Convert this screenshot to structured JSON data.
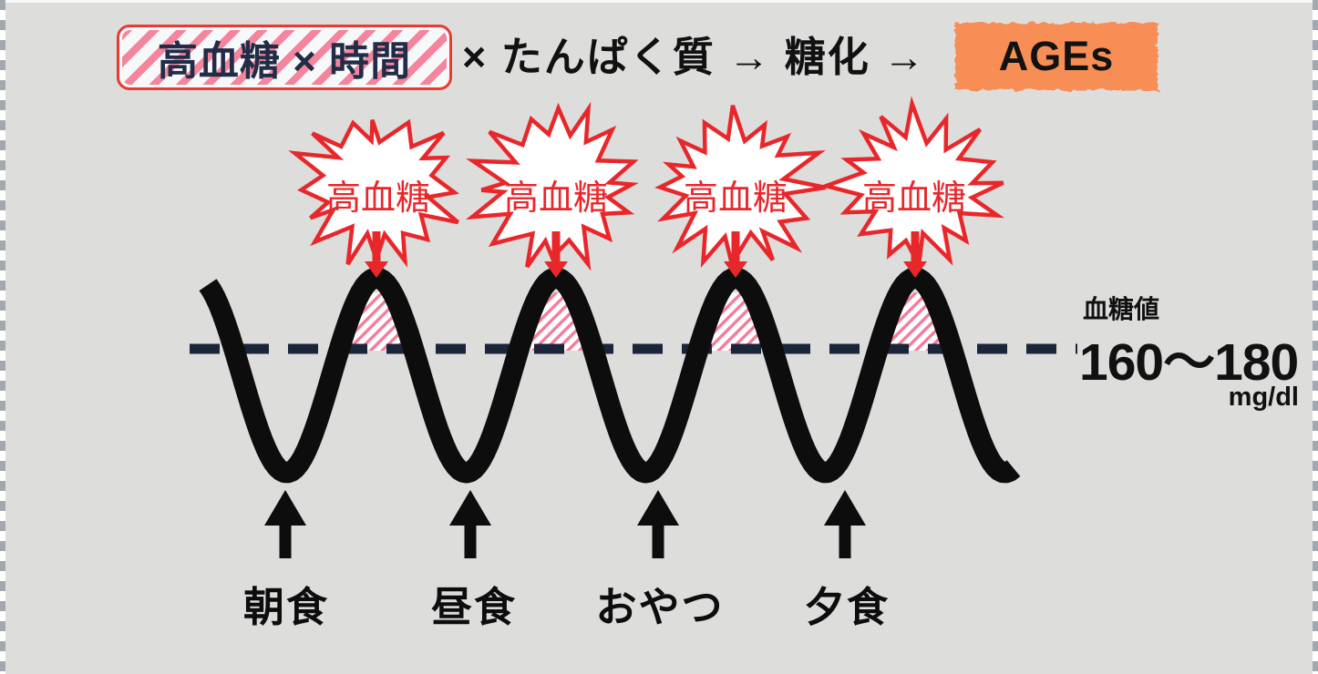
{
  "formula": {
    "box1_label": "高血糖 × 時間",
    "middle_text": "× たんぱく質 → 糖化 →",
    "ages_label": "AGEs"
  },
  "bursts": {
    "labels": [
      "高血糖",
      "高血糖",
      "高血糖",
      "高血糖"
    ]
  },
  "threshold": {
    "title": "血糖値",
    "range": "160〜180",
    "unit": "mg/dl"
  },
  "meals": {
    "labels": [
      "朝食",
      "昼食",
      "おやつ",
      "夕食"
    ]
  },
  "colors": {
    "background": "#dddddc",
    "red_accent": "#e8272b",
    "pink_hatch": "#f5849d",
    "orange_box": "#f78e55",
    "navy_text": "#232c47",
    "threshold_line": "#1b2539",
    "wave_black": "#0d0d0d"
  },
  "chart_data": {
    "type": "line",
    "events": [
      "朝食",
      "昼食",
      "おやつ",
      "夕食"
    ],
    "spike_label": "高血糖",
    "spike_count": 4,
    "threshold_label": "血糖値",
    "threshold_range": "160〜180",
    "threshold_unit": "mg/dl",
    "peaks_exceed_threshold": true
  }
}
